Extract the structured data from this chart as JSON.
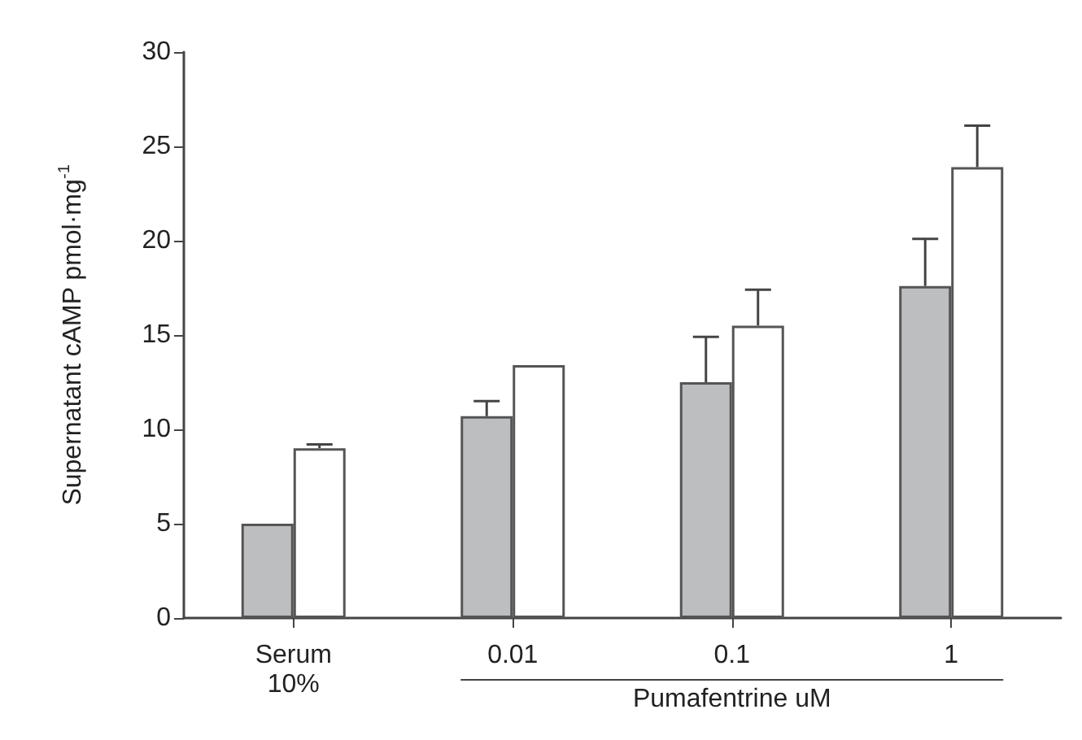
{
  "chart_data": {
    "type": "bar",
    "ylabel": "Supernatant cAMP pmol·mg$^{-1}$",
    "xlabel": "Pumafentrine uM",
    "categories": [
      "Serum\n10%",
      "0.01",
      "0.1",
      "1"
    ],
    "series": [
      {
        "color": "#bdbec0",
        "values": [
          5,
          10.7,
          12.5,
          17.6
        ],
        "errors": [
          null,
          [
            10.7,
            11.5
          ],
          [
            12.5,
            14.9
          ],
          [
            17.6,
            20.1
          ]
        ]
      },
      {
        "color": "#ffffff",
        "values": [
          9,
          13.4,
          15.5,
          23.9
        ],
        "errors": [
          [
            9,
            9.2
          ],
          null,
          [
            15.5,
            17.4
          ],
          [
            23.9,
            26.1
          ]
        ]
      }
    ],
    "ylim": [
      0,
      30
    ],
    "yticks": [
      0,
      5,
      10,
      15,
      20,
      25,
      30
    ],
    "grid": false
  }
}
